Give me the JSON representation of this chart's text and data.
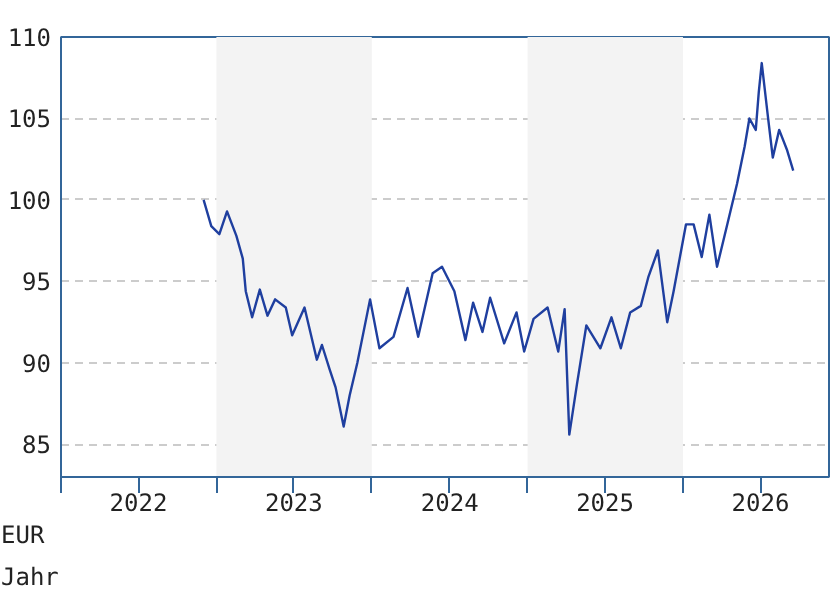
{
  "chart_data": {
    "type": "line",
    "xlabel": "Jahr",
    "ylabel": "EUR",
    "x": [
      "2022-12-02",
      "2022-12-20",
      "2023-01-08",
      "2023-01-26",
      "2023-02-17",
      "2023-03-04",
      "2023-03-11",
      "2023-03-26",
      "2023-04-13",
      "2023-05-01",
      "2023-05-19",
      "2023-06-13",
      "2023-06-28",
      "2023-07-27",
      "2023-08-25",
      "2023-09-06",
      "2023-09-24",
      "2023-10-08",
      "2023-10-27",
      "2023-11-10",
      "2023-11-28",
      "2023-12-28",
      "2024-01-19",
      "2024-02-21",
      "2024-03-25",
      "2024-04-19",
      "2024-05-23",
      "2024-06-14",
      "2024-07-13",
      "2024-08-08",
      "2024-08-26",
      "2024-09-17",
      "2024-10-05",
      "2024-11-07",
      "2024-12-06",
      "2024-12-24",
      "2025-01-15",
      "2025-02-17",
      "2025-03-14",
      "2025-03-29",
      "2025-04-09",
      "2025-04-27",
      "2025-05-19",
      "2025-06-21",
      "2025-07-17",
      "2025-08-08",
      "2025-08-30",
      "2025-09-24",
      "2025-10-12",
      "2025-11-03",
      "2025-11-25",
      "2025-12-10",
      "2026-01-08",
      "2026-01-26",
      "2026-02-14",
      "2026-03-04",
      "2026-03-22",
      "2026-04-16",
      "2026-05-08",
      "2026-05-26",
      "2026-06-06",
      "2026-06-21",
      "2026-06-28",
      "2026-07-05",
      "2026-07-20",
      "2026-07-31",
      "2026-08-15",
      "2026-09-02",
      "2026-09-17"
    ],
    "series": [
      {
        "color": "#1f3f9f",
        "values": [
          100.0,
          98.4,
          97.9,
          99.3,
          97.8,
          96.4,
          94.4,
          92.8,
          94.5,
          92.9,
          93.9,
          93.4,
          91.7,
          93.4,
          90.2,
          91.1,
          89.6,
          88.5,
          86.1,
          88.0,
          90.0,
          93.9,
          90.9,
          91.6,
          94.6,
          91.6,
          95.5,
          95.9,
          94.4,
          91.4,
          93.7,
          91.9,
          94.0,
          91.2,
          93.1,
          90.7,
          92.7,
          93.4,
          90.7,
          93.3,
          85.6,
          88.7,
          92.3,
          90.9,
          92.8,
          90.9,
          93.1,
          93.5,
          95.3,
          96.9,
          92.5,
          94.4,
          98.5,
          98.5,
          96.5,
          99.1,
          95.9,
          98.6,
          101.0,
          103.3,
          105.0,
          104.3,
          106.6,
          108.4,
          105.0,
          102.6,
          104.3,
          103.1,
          101.8
        ]
      }
    ],
    "xlim": [
      "2022-01-01",
      "2026-12-10"
    ],
    "xticks": [
      {
        "value": "2022-01-01",
        "label": null
      },
      {
        "value": "2022-07-02",
        "label": "2022"
      },
      {
        "value": "2023-01-01",
        "label": null
      },
      {
        "value": "2023-07-02",
        "label": "2023"
      },
      {
        "value": "2024-01-01",
        "label": null
      },
      {
        "value": "2024-07-02",
        "label": "2024"
      },
      {
        "value": "2025-01-01",
        "label": null
      },
      {
        "value": "2025-07-02",
        "label": "2025"
      },
      {
        "value": "2026-01-01",
        "label": null
      },
      {
        "value": "2026-07-02",
        "label": "2026"
      }
    ],
    "ylim": [
      83,
      110
    ],
    "yticks": [
      85,
      90,
      95,
      100,
      105,
      110
    ],
    "grid": "y",
    "line_style": "solid",
    "marker": "none",
    "bands": [
      {
        "axis": "x",
        "from": "2023-01-01",
        "to": "2024-01-01",
        "color": "#f3f3f3"
      },
      {
        "axis": "x",
        "from": "2025-01-01",
        "to": "2026-01-01",
        "color": "#f3f3f3"
      }
    ]
  }
}
